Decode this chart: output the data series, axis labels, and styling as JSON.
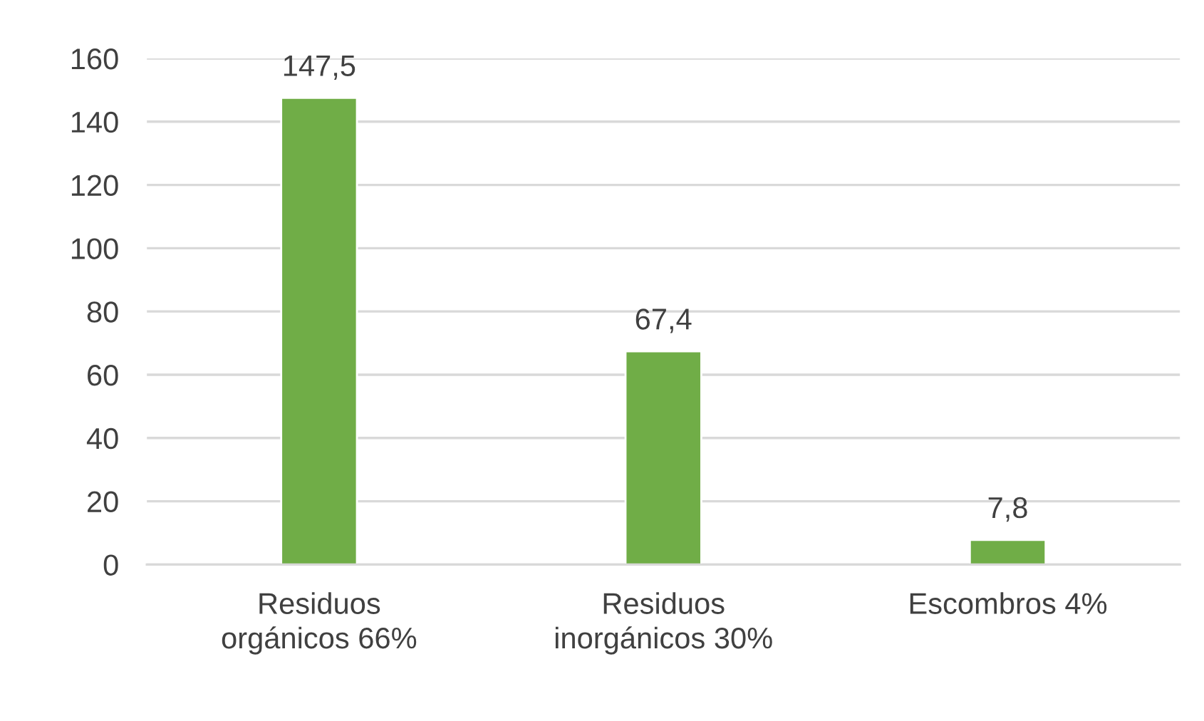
{
  "chart_data": {
    "type": "bar",
    "categories": [
      "Residuos\norgánicos 66%",
      "Residuos\ninorgánicos 30%",
      "Escombros 4%"
    ],
    "values": [
      147.5,
      67.4,
      7.8
    ],
    "value_labels": [
      "147,5",
      "67,4",
      "7,8"
    ],
    "color": "#70ad47",
    "ylim": [
      0,
      160
    ],
    "yticks": [
      0,
      20,
      40,
      60,
      80,
      100,
      120,
      140,
      160
    ],
    "grid": "y",
    "legend": false
  }
}
